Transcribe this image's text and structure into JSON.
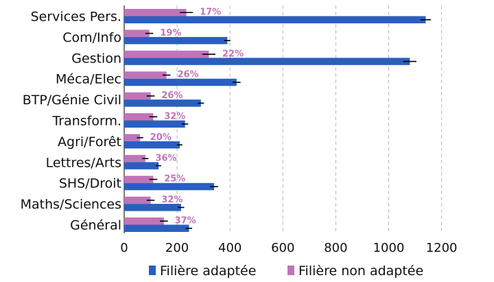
{
  "chart_data": {
    "type": "bar",
    "orientation": "horizontal",
    "categories": [
      "Services Pers.",
      "Com/Info",
      "Gestion",
      "Méca/Elec",
      "BTP/Génie Civil",
      "Transform.",
      "Agri/Forêt",
      "Lettres/Arts",
      "SHS/Droit",
      "Maths/Sciences",
      "Général"
    ],
    "series": [
      {
        "name": "Filière adaptée",
        "color": "#2a5fbf",
        "values": [
          1140,
          390,
          1080,
          425,
          290,
          230,
          210,
          130,
          340,
          215,
          245
        ],
        "error": [
          20,
          12,
          25,
          15,
          12,
          12,
          10,
          10,
          15,
          12,
          12
        ]
      },
      {
        "name": "Filière non adaptée",
        "color": "#c074b8",
        "values": [
          235,
          95,
          320,
          160,
          100,
          110,
          60,
          80,
          110,
          100,
          150
        ],
        "error": [
          25,
          15,
          25,
          15,
          15,
          15,
          12,
          12,
          15,
          15,
          15
        ]
      }
    ],
    "bar_labels": [
      "17%",
      "19%",
      "22%",
      "26%",
      "26%",
      "32%",
      "20%",
      "36%",
      "25%",
      "32%",
      "37%"
    ],
    "x_ticks": [
      0,
      200,
      400,
      600,
      800,
      1000,
      1200
    ],
    "xlim": [
      0,
      1200
    ],
    "grid": "vertical dashed",
    "legend_position": "bottom"
  }
}
